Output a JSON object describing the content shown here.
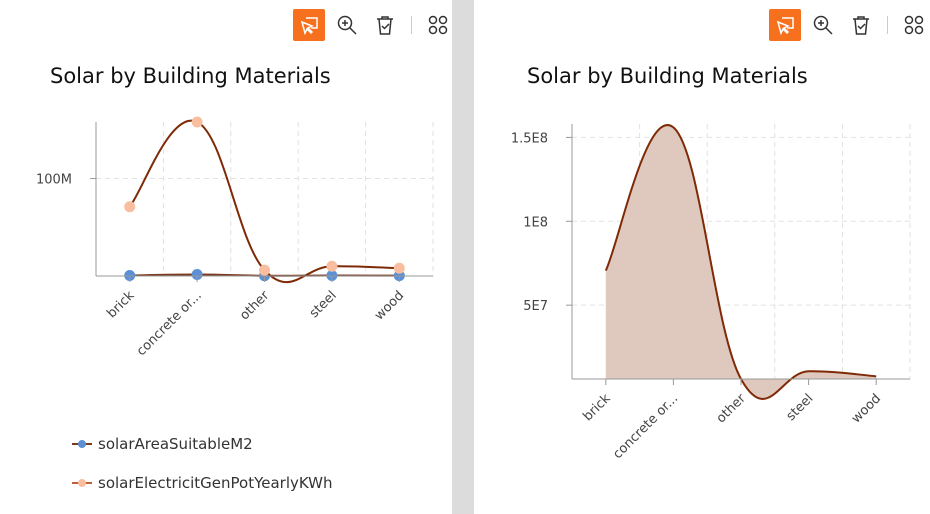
{
  "toolbar": {
    "icons": [
      "select-icon",
      "zoom-in-icon",
      "clear-selection-icon",
      "more-icon"
    ],
    "accent": "#f7701e"
  },
  "chart_data": [
    {
      "type": "line",
      "title": "Solar by Building Materials",
      "categories": [
        "brick",
        "concrete or...",
        "other",
        "steel",
        "wood"
      ],
      "yticks": [
        {
          "value": 100000000,
          "label": "100M"
        }
      ],
      "ylim": [
        0,
        158000000
      ],
      "grid": true,
      "legend_placement": "bottom-left",
      "series": [
        {
          "name": "solarAreaSuitableM2",
          "values": [
            500000,
            1500000,
            300000,
            500000,
            400000
          ],
          "color": "#5b8fd6",
          "line_color": "#7a3a1e"
        },
        {
          "name": "solarElectricitGenPotYearlyKWh",
          "values": [
            71000000,
            158000000,
            6000000,
            10000000,
            8000000
          ],
          "color": "#f9bea0",
          "line_color": "#7f2a06"
        }
      ]
    },
    {
      "type": "area",
      "title": "Solar by Building Materials",
      "categories": [
        "brick",
        "concrete or...",
        "other",
        "steel",
        "wood"
      ],
      "yticks": [
        {
          "value": 50000000,
          "label": "5E7"
        },
        {
          "value": 100000000,
          "label": "1E8"
        },
        {
          "value": 150000000,
          "label": "1.5E8"
        }
      ],
      "ylim": [
        6000000,
        158000000
      ],
      "grid": true,
      "series": [
        {
          "values": [
            70600000,
            156000000,
            6000000,
            10600000,
            7600000
          ],
          "color": "#7f2a06",
          "fill": "#dfc8bd"
        }
      ]
    }
  ]
}
